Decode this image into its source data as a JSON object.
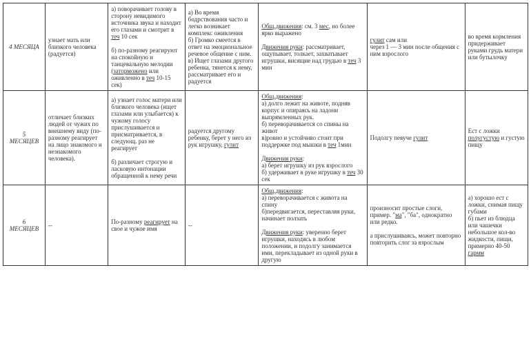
{
  "rows": [
    {
      "age": "4 МЕСЯЦА",
      "c1": "узнает мать или близкого человека (радуется)",
      "c2": "а) поворачивает голову в сторону невидимого источника звука и находит его глазами и смотрит в <span class='u'>теч</span> 10 сек<br><br>б) по-разному реагируют на спокойную и танцевальную мелодии (<span class='u'>заторможено</span> или оживленно в <span class='u'>теч</span> 10-15 сек)",
      "c3": "а) Во время бодрствования часто и легко возникает комплекс оживления<br>б) Громко смеется в ответ на эмоциональное речевое общение с ним.<br>в) Ищет глазами другого ребенка, тянется к нему, рассматривает его и радуется",
      "c4": "<span class='u'>Общ.движения</span>: см. 3 <span class='u'>мес</span>, но более ярко выражено<br><br><span class='u'>Движения руки</span>: рассматривает, ощупывает, толкает, захватывает игрушки, висящие над грудью в <span class='u'>теч</span> 3 мин",
      "c5": "<span class='u'>гулит</span> сам или<br>через 1 — 3 мин после общения с ним взрослого",
      "c6": "во время кормления придерживает руками грудь матери или бутылочку"
    },
    {
      "age": "5<br>МЕСЯЦЕВ",
      "c1": "отличает близких людей от чужих по внешнему виду (по-разному реагирует на лицо знакомого и незнакомого человека).",
      "c2": "а) узнает голос матери или близкого человека (ищет глазами или улыбается) к чужому голосу прислушивается и присматривается, в следующ. раз не реагирует<br><br>б) различает строгую и ласковую интонации обращенной к нему речи",
      "c3": "радуется другому ребенку, берет у него из рук игрушку, <span class='u'>гулит</span>",
      "c4": "<span class='u'>Общ.движения</span>:<br>а) долго лежит на животе, подняв корпус и опираясь на ладони выпрямленных рук.<br>б) переворачивается со спины на живот<br>в)ровно и устойчиво стоит при поддержке под мышки в <span class='u'>теч</span> 1мин<br><br><span class='u'>Движения руки</span>:<br>а) берет игрушку из рук взрослого<br>б) удерживает в руке игрушку в <span class='u'>теч</span> 30 сек",
      "c5": "Подолгу певуче <span class='u'>гулит</span>",
      "c6": "Ест с ложки <span class='u'>полугустую</span> и густую пищу"
    },
    {
      "age": "6<br>МЕСЯЦЕВ",
      "c1": "--",
      "c2": "По-разному <span class='u'>реагирует</span> на свое и чужое имя",
      "c3": "--",
      "c4": "<span class='u'>Общ.движения</span>:<br>а) переворачивается с живота на спину<br>б)передвигается, переставляя руки, начинает ползать<br><br><span class='u'>Движения руки</span>: уверенно берет игрушки, находясь в любом положении, и подолгу занимается ими, перекладывает из одной руки в другую",
      "c5": "произносит простые слоги, пример. \"<span class='u'>ма</span>\", \"ба\", однократно или редко.<br><br>а прислушиваясь, может повторно повторить слог за взрослым",
      "c6": "а) хорошо ест с ложки, снимая пищу губами<br>б) пьет из блюдца или чашечки небольшое кол-во жидкости, пищи, примерно 40-50 <span class='u'>гармм</span>"
    }
  ]
}
